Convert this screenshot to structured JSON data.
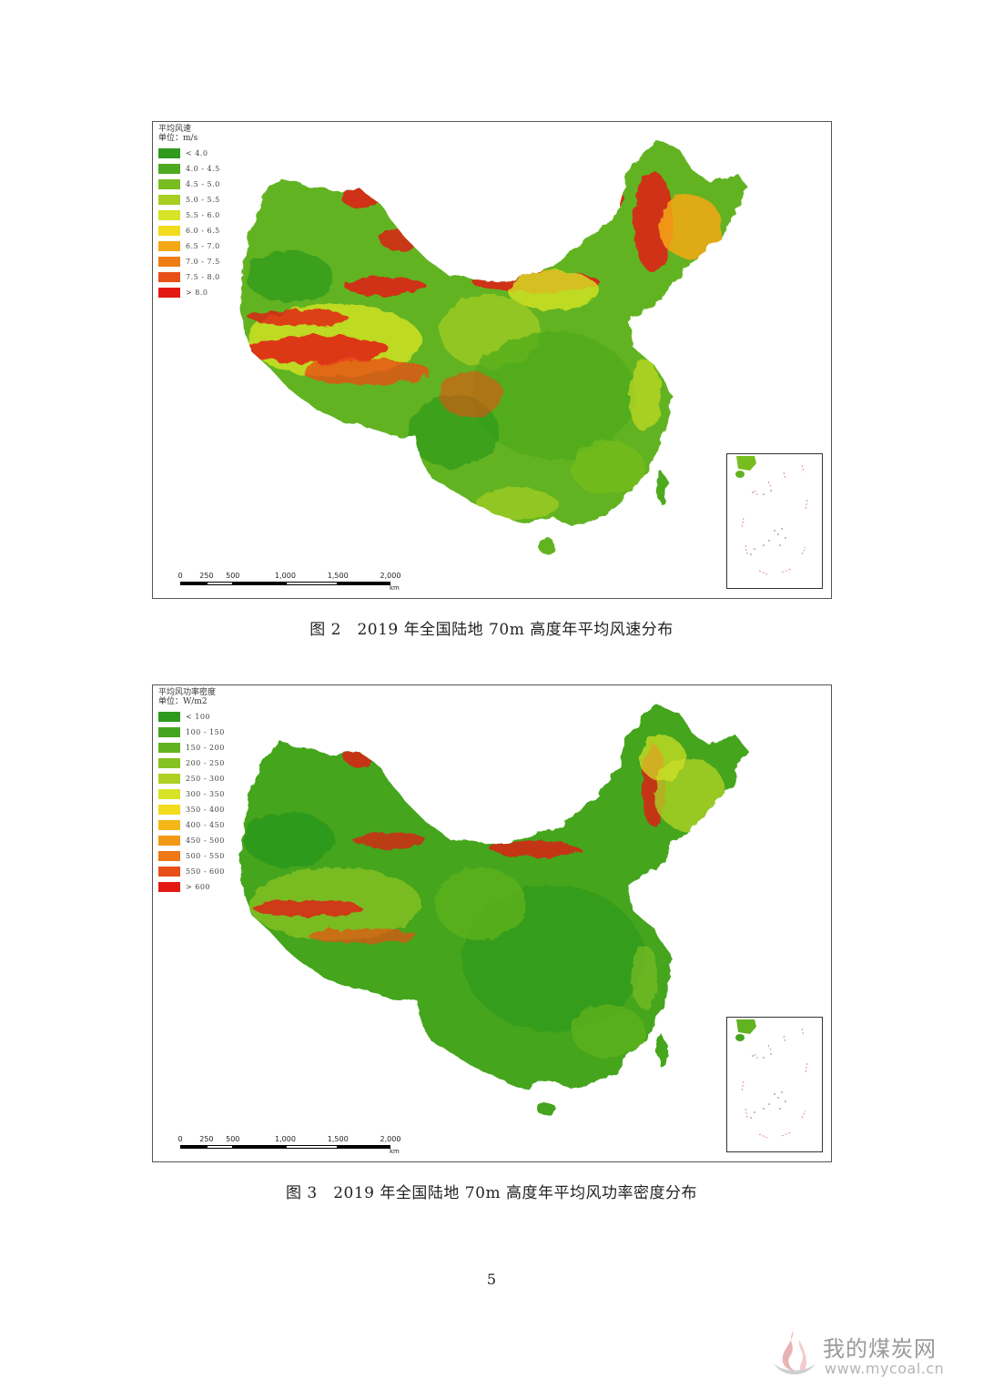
{
  "figures": [
    {
      "legend_title": "平均风速",
      "legend_unit": "单位：m/s",
      "classes": [
        {
          "label": "< 4.0",
          "color": "#2f9a1e"
        },
        {
          "label": "4.0 - 4.5",
          "color": "#4daa1f"
        },
        {
          "label": "4.5 - 5.0",
          "color": "#78bd20"
        },
        {
          "label": "5.0 - 5.5",
          "color": "#a6cf22"
        },
        {
          "label": "5.5 - 6.0",
          "color": "#d6e326"
        },
        {
          "label": "6.0 - 6.5",
          "color": "#f2dc1e"
        },
        {
          "label": "6.5 - 7.0",
          "color": "#f5a816"
        },
        {
          "label": "7.0 - 7.5",
          "color": "#ee7d16"
        },
        {
          "label": "7.5 - 8.0",
          "color": "#e84f16"
        },
        {
          "label": "> 8.0",
          "color": "#e31a14"
        }
      ],
      "scale_ticks": [
        "0",
        "250",
        "500",
        "1,000",
        "1,500",
        "2,000"
      ],
      "scale_unit": "km",
      "caption": "图 2　2019 年全国陆地 70m 高度年平均风速分布"
    },
    {
      "legend_title": "平均风功率密度",
      "legend_unit": "单位：W/m2",
      "classes": [
        {
          "label": "< 100",
          "color": "#2f9a1e"
        },
        {
          "label": "100 - 150",
          "color": "#45a51f"
        },
        {
          "label": "150 - 200",
          "color": "#62b320"
        },
        {
          "label": "200 - 250",
          "color": "#86c221"
        },
        {
          "label": "250 - 300",
          "color": "#acd123"
        },
        {
          "label": "300 - 350",
          "color": "#d6e326"
        },
        {
          "label": "350 - 400",
          "color": "#f2dc1e"
        },
        {
          "label": "400 - 450",
          "color": "#f5b818"
        },
        {
          "label": "450 - 500",
          "color": "#f29816"
        },
        {
          "label": "500 - 550",
          "color": "#ee7716"
        },
        {
          "label": "550 - 600",
          "color": "#e84f16"
        },
        {
          "label": "> 600",
          "color": "#e31a14"
        }
      ],
      "scale_ticks": [
        "0",
        "250",
        "500",
        "1,000",
        "1,500",
        "2,000"
      ],
      "scale_unit": "km",
      "caption": "图 3　2019 年全国陆地 70m 高度年平均风功率密度分布"
    }
  ],
  "page_number": "5",
  "watermark": {
    "name": "我的煤炭网",
    "url": "www.mycoal.cn"
  }
}
